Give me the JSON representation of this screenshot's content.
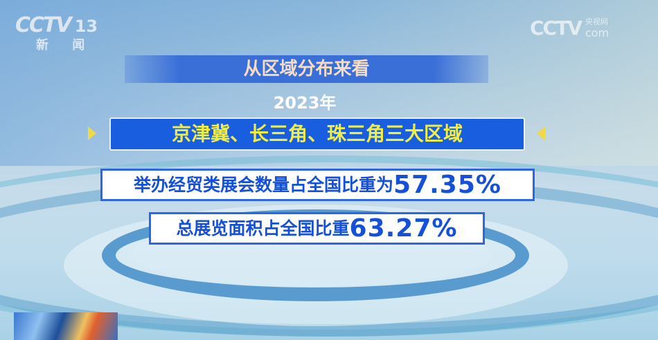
{
  "logos": {
    "channel": {
      "brand": "CCTV",
      "number": "13",
      "name": "新 闻"
    },
    "site": {
      "brand": "CCTV",
      "cn": "央视网",
      "domain": "com"
    }
  },
  "header": {
    "title": "从区域分布来看"
  },
  "year": "2023年",
  "region": {
    "title": "京津冀、长三角、珠三角三大区域"
  },
  "stats": [
    {
      "label": "举办经贸类展会数量占全国比重为",
      "value": "57.35%"
    },
    {
      "label": "总展览面积占全国比重",
      "value": "63.27%"
    }
  ],
  "colors": {
    "accent_blue": "#1a5ee0",
    "highlight_yellow": "#f0ee40",
    "stat_text": "#1450d8",
    "header_text": "#f8dcc0"
  }
}
